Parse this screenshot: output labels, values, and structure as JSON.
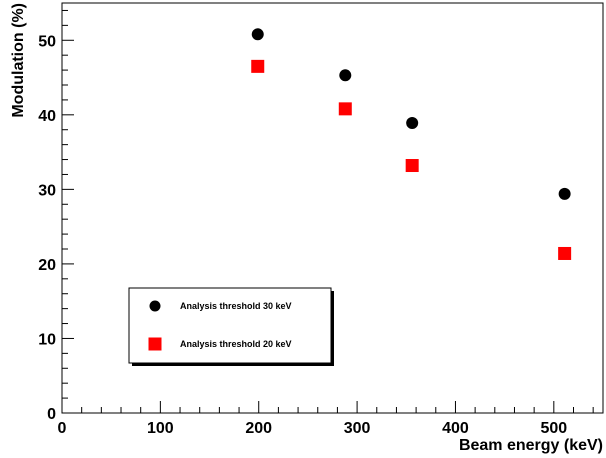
{
  "chart_data": {
    "type": "scatter",
    "title": "",
    "xlabel": "Beam energy (keV)",
    "ylabel": "Modulation (%)",
    "xlim": [
      0,
      550
    ],
    "ylim": [
      0,
      55
    ],
    "x_major_ticks": [
      0,
      100,
      200,
      300,
      400,
      500
    ],
    "x_minor_step": 20,
    "y_major_ticks": [
      0,
      10,
      20,
      30,
      40,
      50
    ],
    "y_minor_step": 2,
    "grid": false,
    "legend_position": "lower-left",
    "series": [
      {
        "name": "Analysis threshold 30 keV",
        "marker": "circle",
        "color": "#000000",
        "x": [
          199,
          288,
          356,
          511
        ],
        "y": [
          50.8,
          45.3,
          38.9,
          29.4
        ]
      },
      {
        "name": "Analysis threshold 20 keV",
        "marker": "square",
        "color": "#ff0000",
        "x": [
          199,
          288,
          356,
          511
        ],
        "y": [
          46.5,
          40.8,
          33.2,
          21.4
        ]
      }
    ]
  }
}
